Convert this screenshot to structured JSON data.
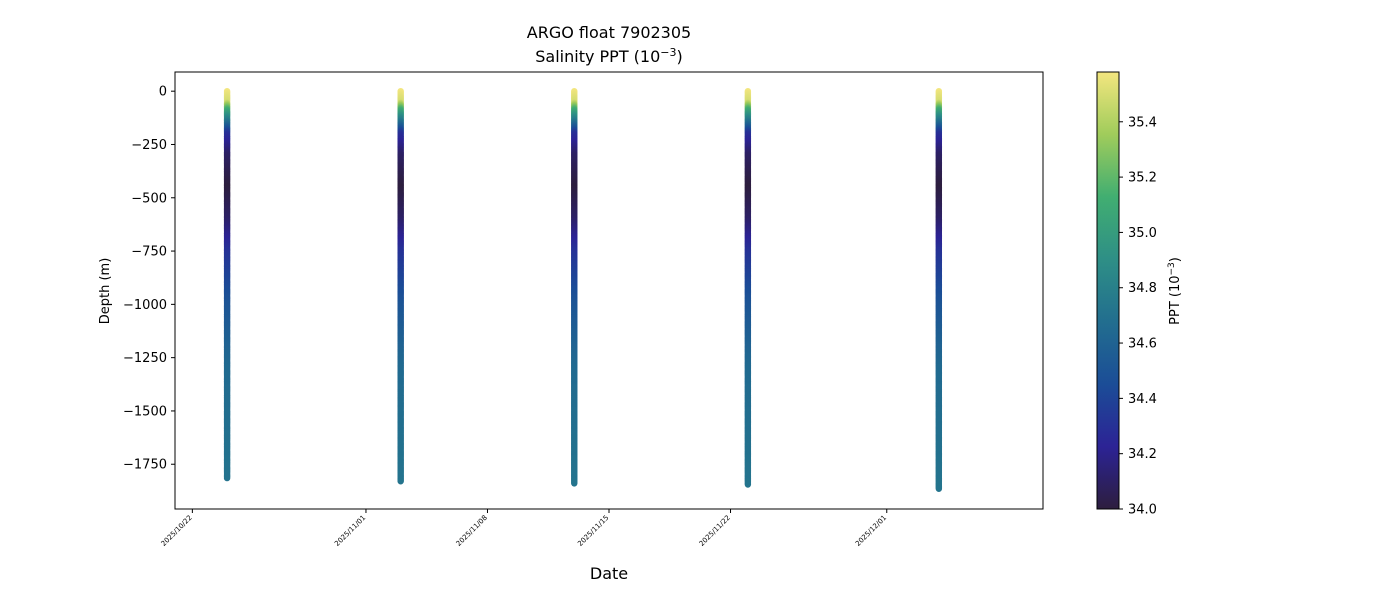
{
  "chart_data": {
    "type": "scatter",
    "title": "ARGO float 7902305",
    "subtitle": "Salinity PPT (10",
    "subtitle_sup": "−3",
    "subtitle_end": ")",
    "xlabel": "Date",
    "ylabel": "Depth (m)",
    "xlim": [
      "2025-10-21",
      "2025-12-10"
    ],
    "ylim": [
      -1960,
      90
    ],
    "x_ticks": [
      "2025/10/22",
      "2025/11/01",
      "2025/11/08",
      "2025/11/15",
      "2025/11/22",
      "2025/12/01"
    ],
    "y_ticks": [
      0,
      -250,
      -500,
      -750,
      -1000,
      -1250,
      -1500,
      -1750
    ],
    "y_tick_labels": [
      "0",
      "−250",
      "−500",
      "−750",
      "−1000",
      "−1250",
      "−1500",
      "−1750"
    ],
    "profiles": [
      {
        "date": "2025-10-24",
        "max_depth": -1815
      },
      {
        "date": "2025-11-03",
        "max_depth": -1830
      },
      {
        "date": "2025-11-13",
        "max_depth": -1840
      },
      {
        "date": "2025-11-23",
        "max_depth": -1845
      },
      {
        "date": "2025-12-04",
        "max_depth": -1865
      }
    ],
    "salinity_profile": [
      {
        "depth": 0,
        "ppt": 35.58
      },
      {
        "depth": -50,
        "ppt": 35.5
      },
      {
        "depth": -90,
        "ppt": 35.1
      },
      {
        "depth": -140,
        "ppt": 34.75
      },
      {
        "depth": -200,
        "ppt": 34.3
      },
      {
        "depth": -300,
        "ppt": 34.1
      },
      {
        "depth": -450,
        "ppt": 34.0
      },
      {
        "depth": -600,
        "ppt": 34.1
      },
      {
        "depth": -750,
        "ppt": 34.3
      },
      {
        "depth": -1000,
        "ppt": 34.5
      },
      {
        "depth": -1300,
        "ppt": 34.65
      },
      {
        "depth": -1870,
        "ppt": 34.72
      }
    ],
    "colorbar": {
      "label": "PPT (10",
      "label_sup": "−3",
      "label_end": ")",
      "range": [
        34.0,
        35.58
      ],
      "ticks": [
        34.0,
        34.2,
        34.4,
        34.6,
        34.8,
        35.0,
        35.2,
        35.4
      ],
      "tick_labels": [
        "34.0",
        "34.2",
        "34.4",
        "34.6",
        "34.8",
        "35.0",
        "35.2",
        "35.4"
      ],
      "colormap_stops": [
        "#2d1e3e",
        "#2c2395",
        "#1b4d97",
        "#226e8f",
        "#2e8f86",
        "#41ae71",
        "#a0cc5b",
        "#f3e67f"
      ]
    },
    "grid": false
  }
}
